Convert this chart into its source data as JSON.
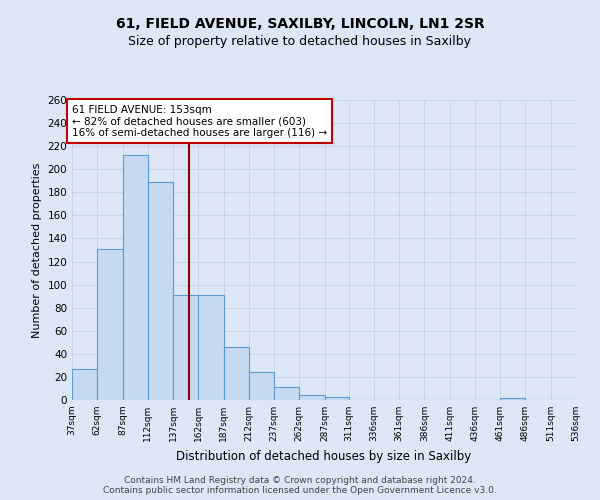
{
  "title": "61, FIELD AVENUE, SAXILBY, LINCOLN, LN1 2SR",
  "subtitle": "Size of property relative to detached houses in Saxilby",
  "xlabel": "Distribution of detached houses by size in Saxilby",
  "ylabel": "Number of detached properties",
  "bin_edges": [
    37,
    62,
    87,
    112,
    137,
    162,
    187,
    212,
    237,
    262,
    287,
    311,
    336,
    361,
    386,
    411,
    436,
    461,
    486,
    511,
    536
  ],
  "bin_labels": [
    "37sqm",
    "62sqm",
    "87sqm",
    "112sqm",
    "137sqm",
    "162sqm",
    "187sqm",
    "212sqm",
    "237sqm",
    "262sqm",
    "287sqm",
    "311sqm",
    "336sqm",
    "361sqm",
    "386sqm",
    "411sqm",
    "436sqm",
    "461sqm",
    "486sqm",
    "511sqm",
    "536sqm"
  ],
  "counts": [
    27,
    131,
    212,
    189,
    91,
    91,
    46,
    24,
    11,
    4,
    3,
    0,
    0,
    0,
    0,
    0,
    0,
    2,
    0,
    0
  ],
  "bar_color": "#c6d9f0",
  "bar_edge_color": "#5b9bd5",
  "property_value": 153,
  "vline_color": "#8b0000",
  "annotation_line1": "61 FIELD AVENUE: 153sqm",
  "annotation_line2": "← 82% of detached houses are smaller (603)",
  "annotation_line3": "16% of semi-detached houses are larger (116) →",
  "annotation_box_color": "white",
  "annotation_box_edge_color": "#c00000",
  "ylim": [
    0,
    260
  ],
  "yticks": [
    0,
    20,
    40,
    60,
    80,
    100,
    120,
    140,
    160,
    180,
    200,
    220,
    240,
    260
  ],
  "grid_color": "#c8d4e8",
  "footer_line1": "Contains HM Land Registry data © Crown copyright and database right 2024.",
  "footer_line2": "Contains public sector information licensed under the Open Government Licence v3.0.",
  "bg_color": "#dce6f5",
  "title_fontsize": 10,
  "subtitle_fontsize": 9
}
